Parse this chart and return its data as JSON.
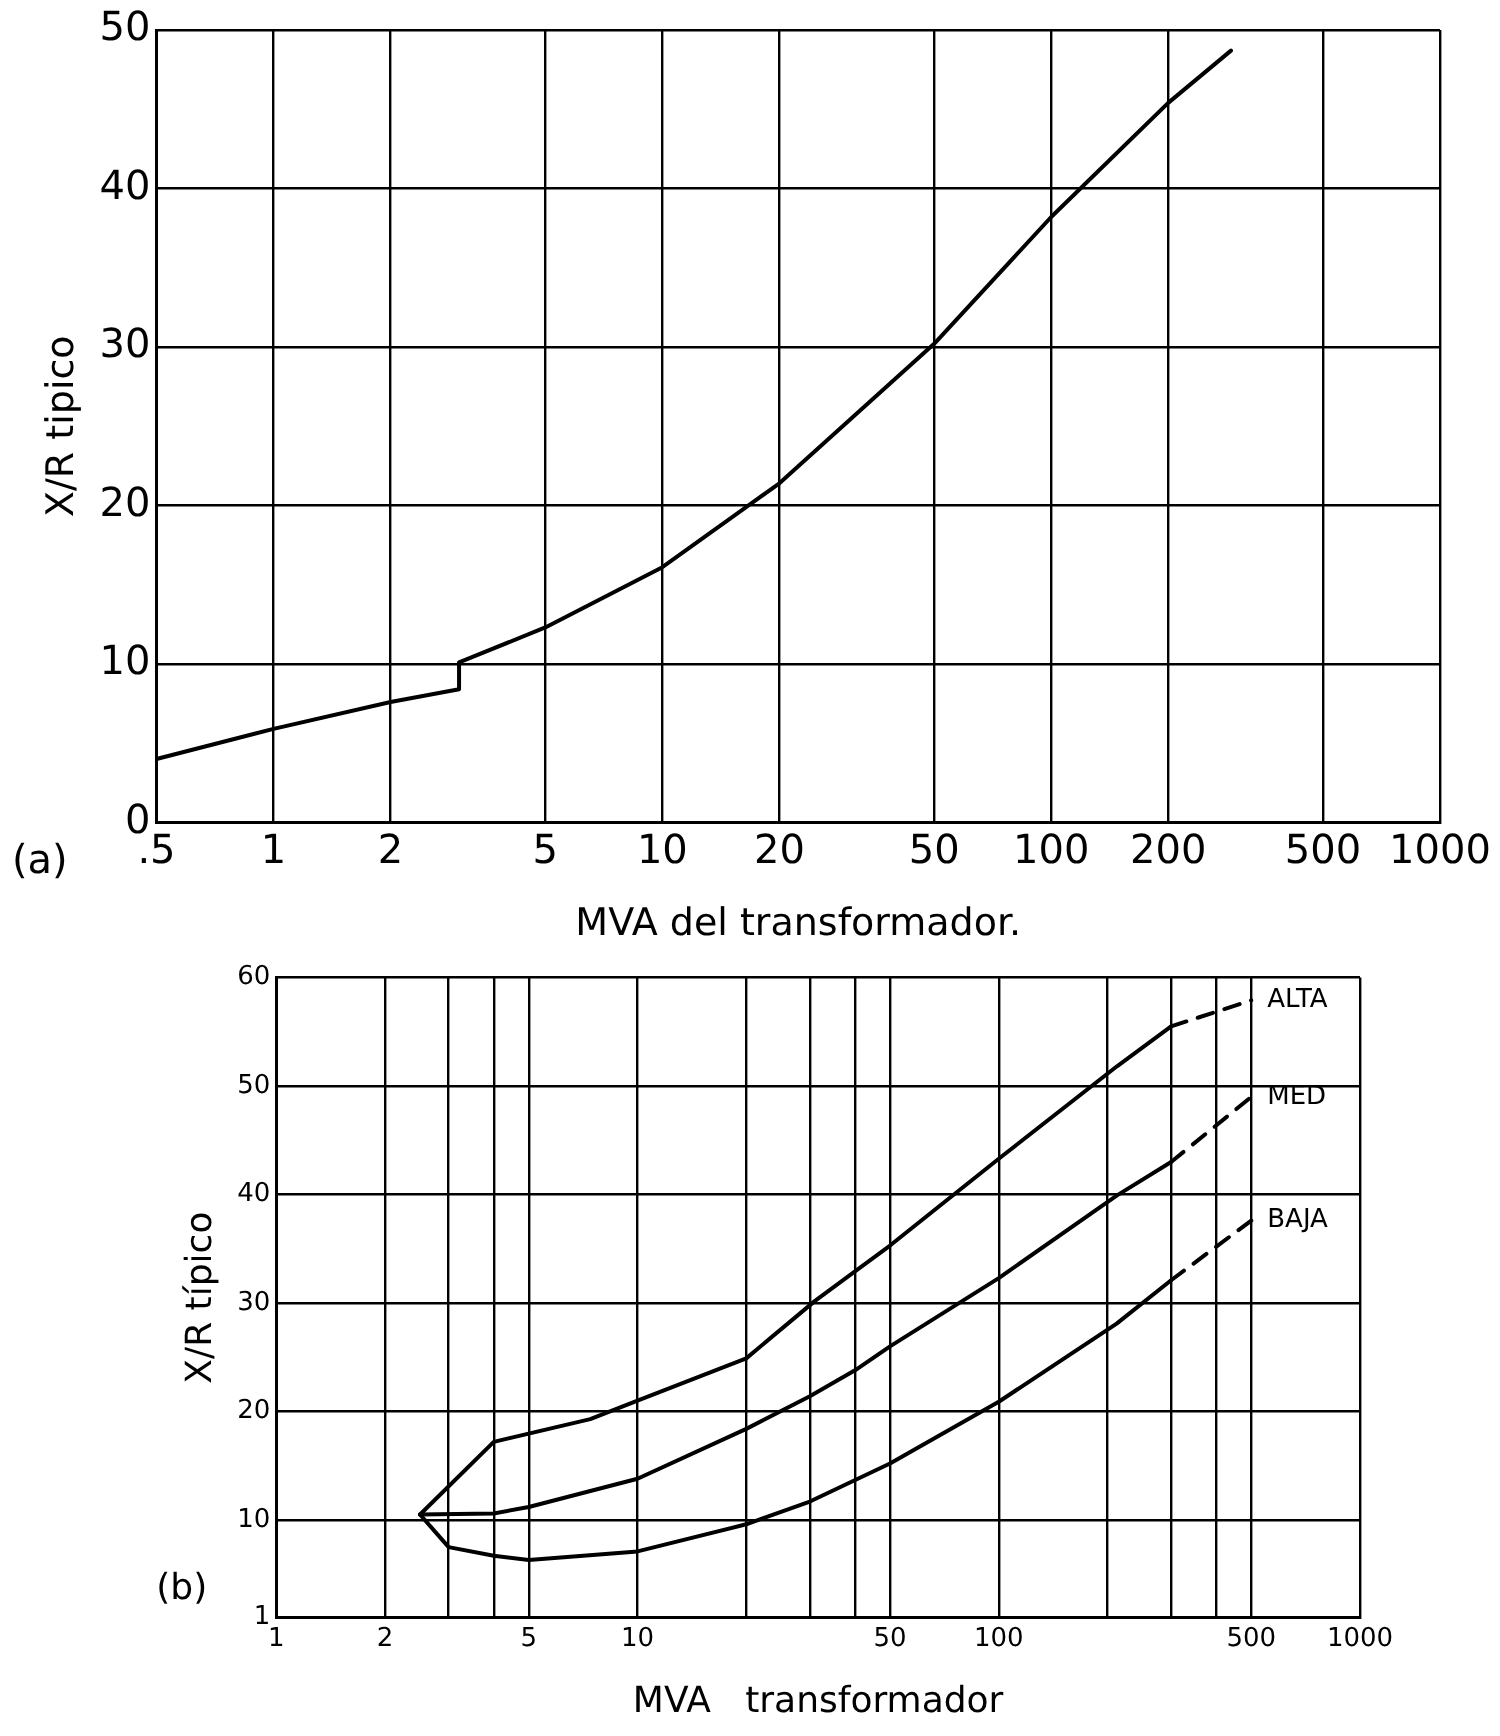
{
  "chart_data": [
    {
      "type": "line",
      "xlabel": "MVA del transformador.",
      "ylabel": "X/R tipico",
      "log": "x",
      "grid": true,
      "legend": false,
      "annotations": [
        "(a)"
      ],
      "xlim": [
        0.5,
        1000
      ],
      "xticks": [
        {
          "value": 0.5,
          "label": ".5"
        },
        1,
        2,
        5,
        10,
        20,
        50,
        100,
        200,
        500,
        1000
      ],
      "ylim": [
        0,
        50
      ],
      "yticks": [
        0,
        10,
        20,
        30,
        40,
        50
      ],
      "series": [
        {
          "color": "#000000",
          "line_style": "solid",
          "x": [
            0.5,
            1,
            2,
            3,
            3,
            5,
            10,
            20,
            50,
            100,
            200,
            290
          ],
          "values": [
            4.0,
            5.9,
            7.6,
            8.4,
            10.1,
            12.3,
            16.1,
            21.4,
            30.2,
            38.2,
            45.4,
            48.7
          ]
        }
      ]
    },
    {
      "type": "line",
      "xlabel": "MVA   transformador",
      "ylabel": "X/R típico",
      "log": "x",
      "grid": true,
      "legend": false,
      "annotations": [
        "(b)"
      ],
      "xlim": [
        1,
        1000
      ],
      "xticks": [
        1,
        2,
        {
          "value": 3,
          "label": null
        },
        {
          "value": 4,
          "label": null
        },
        5,
        10,
        {
          "value": 20,
          "label": null
        },
        {
          "value": 30,
          "label": null
        },
        {
          "value": 40,
          "label": null
        },
        50,
        100,
        {
          "value": 200,
          "label": null
        },
        {
          "value": 300,
          "label": null
        },
        {
          "value": 400,
          "label": null
        },
        500,
        1000
      ],
      "ylim": [
        1,
        60
      ],
      "yticks": [
        1,
        10,
        20,
        30,
        40,
        50,
        60
      ],
      "series": [
        {
          "color": "#000000",
          "line_style": "solid",
          "x": [
            2.5,
            4,
            7.4,
            10,
            20,
            31,
            50,
            100,
            212,
            300
          ],
          "values": [
            10.5,
            17.2,
            19.3,
            21,
            24.9,
            30.2,
            35.3,
            43.3,
            51.8,
            55.5
          ]
        },
        {
          "name": "ALTA",
          "color": "#000000",
          "line_style": "dashed",
          "x": [
            300,
            500
          ],
          "values": [
            55.5,
            57.9
          ]
        },
        {
          "color": "#000000",
          "line_style": "solid",
          "x": [
            2.5,
            4,
            5,
            10,
            20,
            30,
            40,
            50,
            100,
            212,
            300
          ],
          "values": [
            10.5,
            10.6,
            11.2,
            13.8,
            18.4,
            21.4,
            23.8,
            26,
            32.3,
            39.9,
            43
          ]
        },
        {
          "name": "MED",
          "color": "#000000",
          "line_style": "dashed",
          "x": [
            300,
            500
          ],
          "values": [
            43,
            49
          ]
        },
        {
          "color": "#000000",
          "line_style": "solid",
          "x": [
            2.5,
            3,
            4,
            5,
            10,
            20,
            30,
            50,
            100,
            212,
            300
          ],
          "values": [
            10.5,
            7.5,
            6.7,
            6.3,
            7.1,
            9.6,
            11.7,
            15.2,
            20.9,
            28.1,
            32.1
          ]
        },
        {
          "name": "BAJA",
          "color": "#000000",
          "line_style": "dashed",
          "x": [
            300,
            500
          ],
          "values": [
            32.1,
            37.6
          ]
        }
      ]
    }
  ]
}
